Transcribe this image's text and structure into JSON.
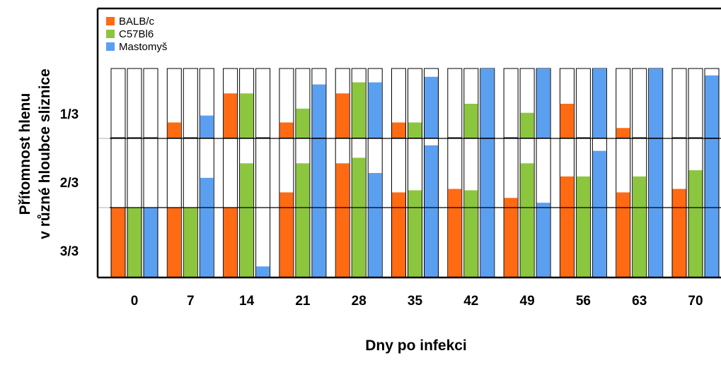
{
  "chart_data": {
    "type": "bar",
    "title": "",
    "xlabel": "Dny po infekci",
    "ylabel_lines": [
      "Přítomnost hlenu",
      "v různé hloubce sliznice"
    ],
    "categories": [
      "0",
      "7",
      "14",
      "21",
      "28",
      "35",
      "42",
      "49",
      "56",
      "63",
      "70"
    ],
    "y_tick_labels": [
      "1/3",
      "2/3",
      "3/3"
    ],
    "ylim": [
      0,
      3
    ],
    "legend_position": "top-left",
    "series": [
      {
        "name": "BALB/c",
        "color": "#ff6a13",
        "values": [
          1.0,
          1.0,
          1.0,
          1.0,
          1.0,
          1.0,
          1.0,
          1.0,
          1.0,
          1.0,
          1.0
        ]
      },
      {
        "name": "C57Bl6",
        "color": "#8cc63e",
        "values": [
          1.0,
          1.0,
          1.0,
          1.0,
          1.0,
          1.0,
          1.0,
          1.0,
          1.0,
          1.0,
          1.0
        ]
      },
      {
        "name": "Mastomyš",
        "color": "#5b9ff1",
        "values": [
          1.0,
          1.0,
          1.0,
          1.0,
          1.0,
          1.0,
          1.0,
          1.0,
          1.0,
          1.0,
          1.0
        ]
      }
    ],
    "layers": [
      {
        "name": "3/3",
        "series_values": [
          [
            1.0,
            1.0,
            1.0,
            1.0,
            1.0,
            1.0,
            1.0,
            1.0,
            1.0,
            1.0,
            1.0
          ],
          [
            1.0,
            1.0,
            1.0,
            1.0,
            1.0,
            1.0,
            1.0,
            1.0,
            1.0,
            1.0,
            1.0
          ],
          [
            1.0,
            1.0,
            0.15,
            1.0,
            1.0,
            1.0,
            1.0,
            1.0,
            1.0,
            1.0,
            1.0
          ]
        ]
      },
      {
        "name": "2/3",
        "series_values": [
          [
            0.0,
            0.0,
            0.0,
            0.22,
            0.64,
            0.22,
            0.27,
            0.14,
            0.45,
            0.22,
            0.27
          ],
          [
            0.0,
            0.0,
            0.64,
            0.64,
            0.72,
            0.25,
            0.25,
            0.64,
            0.45,
            0.45,
            0.54
          ],
          [
            0.0,
            0.43,
            0.0,
            1.0,
            0.5,
            0.9,
            1.0,
            0.07,
            0.82,
            1.0,
            1.0
          ]
        ]
      },
      {
        "name": "1/3",
        "series_values": [
          [
            0.0,
            0.22,
            0.64,
            0.22,
            0.64,
            0.22,
            0.0,
            0.0,
            0.49,
            0.14,
            0.0
          ],
          [
            0.0,
            0.0,
            0.64,
            0.42,
            0.8,
            0.22,
            0.49,
            0.36,
            0.0,
            0.0,
            0.0
          ],
          [
            0.0,
            0.32,
            0.0,
            0.77,
            0.8,
            0.88,
            1.0,
            1.0,
            1.0,
            1.0,
            0.9
          ]
        ]
      }
    ]
  }
}
